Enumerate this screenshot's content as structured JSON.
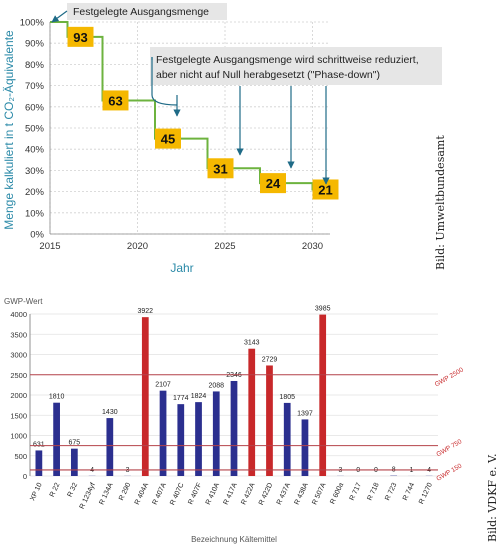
{
  "chart_data": [
    {
      "type": "line",
      "step": true,
      "ylabel": "Menge kalkuliert in t CO₂-Äquivalente",
      "xlabel": "Jahr",
      "xlim": [
        2015,
        2031
      ],
      "ylim": [
        0,
        100
      ],
      "x_ticks": [
        "2015",
        "2020",
        "2025",
        "2030"
      ],
      "y_ticks": [
        "0%",
        "10%",
        "20%",
        "30%",
        "40%",
        "50%",
        "60%",
        "70%",
        "80%",
        "90%",
        "100%"
      ],
      "grid": true,
      "series": [
        {
          "values": [
            {
              "x": 2015,
              "y": 100
            },
            {
              "x": 2016,
              "y": 93
            },
            {
              "x": 2018,
              "y": 63
            },
            {
              "x": 2021,
              "y": 45
            },
            {
              "x": 2024,
              "y": 31
            },
            {
              "x": 2027,
              "y": 24
            },
            {
              "x": 2030,
              "y": 21
            }
          ]
        }
      ],
      "data_labels": [
        "93",
        "63",
        "45",
        "31",
        "24",
        "21"
      ],
      "annotations": [
        "Festgelegte Ausgangsmenge",
        "Festgelegte Ausgangsmenge wird schrittweise reduziert,",
        "aber nicht auf Null herabgesetzt (\"Phase-down\")"
      ],
      "credit": "Bild: Umweltbundesamt",
      "colors": {
        "line": "#6db33f",
        "box": "#f5b800",
        "axis_text": "#2b8aa8",
        "annotation_bg": "#e6e6e6",
        "arrow": "#1f6b87"
      }
    },
    {
      "type": "bar",
      "title": "GWP-Wert",
      "xlabel": "Bezeichnung Kältemittel",
      "ylim": [
        0,
        4000
      ],
      "y_ticks": [
        "0",
        "500",
        "1000",
        "1500",
        "2000",
        "2500",
        "3000",
        "3500",
        "4000"
      ],
      "grid": true,
      "categories": [
        "XP 10",
        "R 22",
        "R 32",
        "R 1234yf",
        "R 134A",
        "R 290",
        "R 404A",
        "R 407A",
        "R 407C",
        "R 407F",
        "R 410A",
        "R 417A",
        "R 422A",
        "R 422D",
        "R 437A",
        "R 438A",
        "R 507A",
        "R 600a",
        "R 717",
        "R 718",
        "R 723",
        "R 744",
        "R 1270"
      ],
      "values": [
        631,
        1810,
        675,
        4,
        1430,
        3,
        3922,
        2107,
        1774,
        1824,
        2088,
        2346,
        3143,
        2729,
        1805,
        1397,
        3985,
        3,
        0,
        0,
        8,
        1,
        4
      ],
      "bar_colors": [
        "#2b2f8f",
        "#2b2f8f",
        "#2b2f8f",
        "#2b2f8f",
        "#2b2f8f",
        "#2b2f8f",
        "#c8282a",
        "#2b2f8f",
        "#2b2f8f",
        "#2b2f8f",
        "#2b2f8f",
        "#2b2f8f",
        "#c8282a",
        "#c8282a",
        "#2b2f8f",
        "#2b2f8f",
        "#c8282a",
        "#2b2f8f",
        "#2b2f8f",
        "#2b2f8f",
        "#2b2f8f",
        "#2b2f8f",
        "#2b2f8f"
      ],
      "reference_lines": [
        {
          "label": "GWP 2500",
          "value": 2500
        },
        {
          "label": "GWP 750",
          "value": 750
        },
        {
          "label": "GWP 150",
          "value": 150
        }
      ],
      "credit": "Bild: VDKF e. V.",
      "colors": {
        "ref_line": "#b5434a",
        "ref_label": "#c8282a",
        "axis_text": "#555555"
      }
    }
  ]
}
